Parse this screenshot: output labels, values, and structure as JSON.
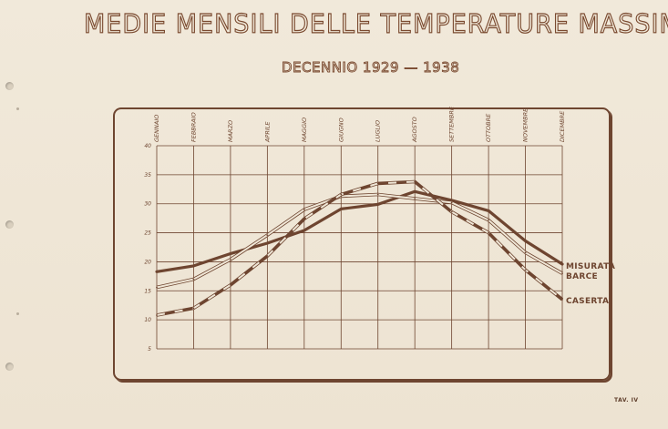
{
  "title": "MEDIE MENSILI DELLE TEMPERATURE MASSIME",
  "subtitle": "DECENNIO 1929 — 1938",
  "plate_label": "TAV. IV",
  "colors": {
    "ink": "#6e4530",
    "paper": "#efe6d6"
  },
  "chart_data": {
    "type": "line",
    "title": "MEDIE MENSILI DELLE TEMPERATURE MASSIME",
    "subtitle": "DECENNIO 1929 — 1938",
    "xlabel": "",
    "ylabel": "",
    "categories": [
      "GENNAIO",
      "FEBBRAIO",
      "MARZO",
      "APRILE",
      "MAGGIO",
      "GIUGNO",
      "LUGLIO",
      "AGOSTO",
      "SETTEMBRE",
      "OTTOBRE",
      "NOVEMBRE",
      "DICEMBRE"
    ],
    "yticks": [
      5,
      10,
      15,
      20,
      25,
      30,
      35,
      40
    ],
    "ylim": [
      5,
      40
    ],
    "grid": true,
    "legend": "right-end labels",
    "series": [
      {
        "name": "MISURATA",
        "style": "thick-solid",
        "values": [
          18.3,
          19.3,
          21.4,
          23.2,
          25.4,
          29.1,
          29.9,
          32.1,
          30.6,
          28.8,
          23.6,
          19.6
        ]
      },
      {
        "name": "BARCE",
        "style": "double-outline",
        "values": [
          15.6,
          17.0,
          20.4,
          24.6,
          29.0,
          31.3,
          31.6,
          30.9,
          30.2,
          27.2,
          21.6,
          18.0
        ]
      },
      {
        "name": "CASERTA",
        "style": "dashed-outline",
        "values": [
          10.8,
          12.0,
          16.0,
          21.0,
          27.4,
          31.6,
          33.5,
          33.8,
          28.6,
          25.0,
          18.6,
          13.5
        ]
      }
    ]
  }
}
